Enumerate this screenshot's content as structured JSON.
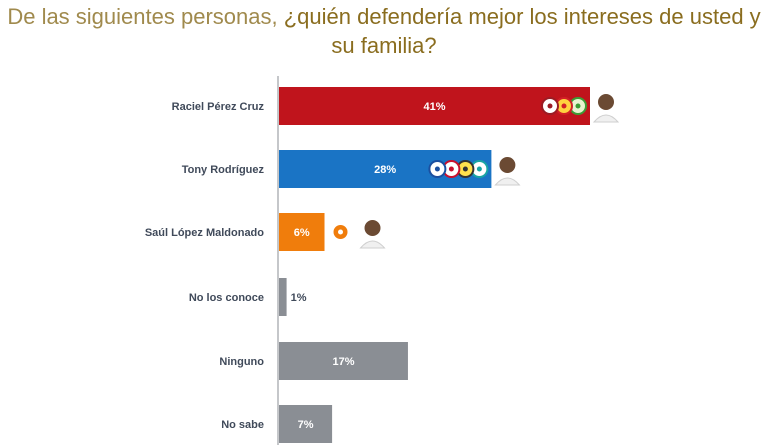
{
  "title": {
    "lead": "De las siguientes personas,",
    "question": "¿quién defendería mejor los intereses de usted y su familia?"
  },
  "chart_data": {
    "type": "bar",
    "orientation": "horizontal",
    "categories": [
      "Raciel Pérez Cruz",
      "Tony Rodríguez",
      "Saúl López Maldonado",
      "No los conoce",
      "Ninguno",
      "No sabe"
    ],
    "values": [
      41,
      28,
      6,
      1,
      17,
      7
    ],
    "value_labels": [
      "41%",
      "28%",
      "6%",
      "1%",
      "17%",
      "7%"
    ],
    "colors": [
      "#c0141c",
      "#1a74c5",
      "#f07d0c",
      "#8a8e94",
      "#8a8e94",
      "#8a8e94"
    ],
    "xlim": [
      0,
      41
    ],
    "grid": false,
    "party_icons": [
      [
        "morena-logo-icon",
        "pt-logo-icon",
        "pvem-logo-icon"
      ],
      [
        "pan-logo-icon",
        "pri-logo-icon",
        "prd-logo-icon",
        "nueva-alianza-logo-icon"
      ],
      [
        "movimiento-ciudadano-logo-icon"
      ],
      [],
      [],
      []
    ],
    "candidate_photos": [
      "candidate-photo-icon",
      "candidate-photo-icon",
      "candidate-photo-icon",
      null,
      null,
      null
    ]
  }
}
